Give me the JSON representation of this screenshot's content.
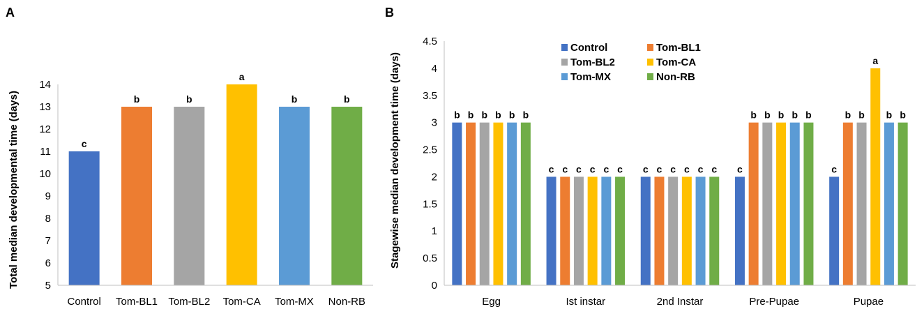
{
  "chart_data": [
    {
      "panel": "A",
      "type": "bar",
      "title": "",
      "xlabel": "",
      "ylabel": "Total median developmental time (days)",
      "ylim": [
        5,
        14
      ],
      "yticks": [
        "5",
        "6",
        "7",
        "8",
        "9",
        "10",
        "11",
        "12",
        "13",
        "14"
      ],
      "grid": false,
      "categories": [
        "Control",
        "Tom-BL1",
        "Tom-BL2",
        "Tom-CA",
        "Tom-MX",
        "Non-RB"
      ],
      "values": [
        11,
        13,
        13,
        14,
        13,
        13
      ],
      "labels": [
        "c",
        "b",
        "b",
        "a",
        "b",
        "b"
      ],
      "colors": [
        "#4472C4",
        "#ED7D31",
        "#A5A5A5",
        "#FFC000",
        "#5B9BD5",
        "#70AD47"
      ]
    },
    {
      "panel": "B",
      "type": "bar",
      "title": "",
      "xlabel": "",
      "ylabel": "Stagewise median development time (days)",
      "ylim": [
        0,
        4.5
      ],
      "yticks": [
        "0",
        "0.5",
        "1",
        "1.5",
        "2",
        "2.5",
        "3",
        "3.5",
        "4",
        "4.5"
      ],
      "grid": false,
      "legend_position": "top-center",
      "categories": [
        "Egg",
        "Ist instar",
        "2nd Instar",
        "Pre-Pupae",
        "Pupae"
      ],
      "series": [
        {
          "name": "Control",
          "color": "#4472C4",
          "values": [
            3,
            2,
            2,
            2,
            2
          ],
          "labels": [
            "b",
            "c",
            "c",
            "c",
            "c"
          ]
        },
        {
          "name": "Tom-BL1",
          "color": "#ED7D31",
          "values": [
            3,
            2,
            2,
            3,
            3
          ],
          "labels": [
            "b",
            "c",
            "c",
            "b",
            "b"
          ]
        },
        {
          "name": "Tom-BL2",
          "color": "#A5A5A5",
          "values": [
            3,
            2,
            2,
            3,
            3
          ],
          "labels": [
            "b",
            "c",
            "c",
            "b",
            "b"
          ]
        },
        {
          "name": "Tom-CA",
          "color": "#FFC000",
          "values": [
            3,
            2,
            2,
            3,
            4
          ],
          "labels": [
            "b",
            "c",
            "c",
            "b",
            "a"
          ]
        },
        {
          "name": "Tom-MX",
          "color": "#5B9BD5",
          "values": [
            3,
            2,
            2,
            3,
            3
          ],
          "labels": [
            "b",
            "c",
            "c",
            "b",
            "b"
          ]
        },
        {
          "name": "Non-RB",
          "color": "#70AD47",
          "values": [
            3,
            2,
            2,
            3,
            3
          ],
          "labels": [
            "b",
            "c",
            "c",
            "b",
            "b"
          ]
        }
      ]
    }
  ]
}
